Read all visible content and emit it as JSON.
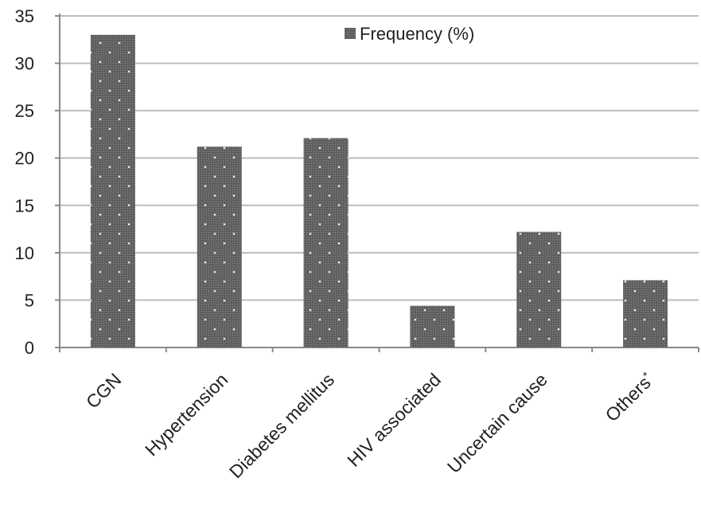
{
  "chart_data": {
    "type": "bar",
    "title": "",
    "xlabel": "",
    "ylabel": "",
    "categories": [
      "CGN",
      "Hypertension",
      "Diabetes mellitus",
      "HIV associated",
      "Uncertain cause",
      "Others"
    ],
    "category_marks": [
      "",
      "",
      "",
      "",
      "",
      "*"
    ],
    "series": [
      {
        "name": "Frequency (%)",
        "values": [
          33,
          21.2,
          22.1,
          4.4,
          12.2,
          7.1
        ]
      }
    ],
    "ylim": [
      0,
      35
    ],
    "yticks": [
      "0",
      "5",
      "10",
      "15",
      "20",
      "25",
      "30",
      "35"
    ],
    "grid": true,
    "legend_position": "top-center",
    "colors": {
      "bar_fill": "#5f5f5f",
      "bar_dot": "#ffffff",
      "grid": "#bdbdbd",
      "axis": "#8a8a8a"
    }
  }
}
